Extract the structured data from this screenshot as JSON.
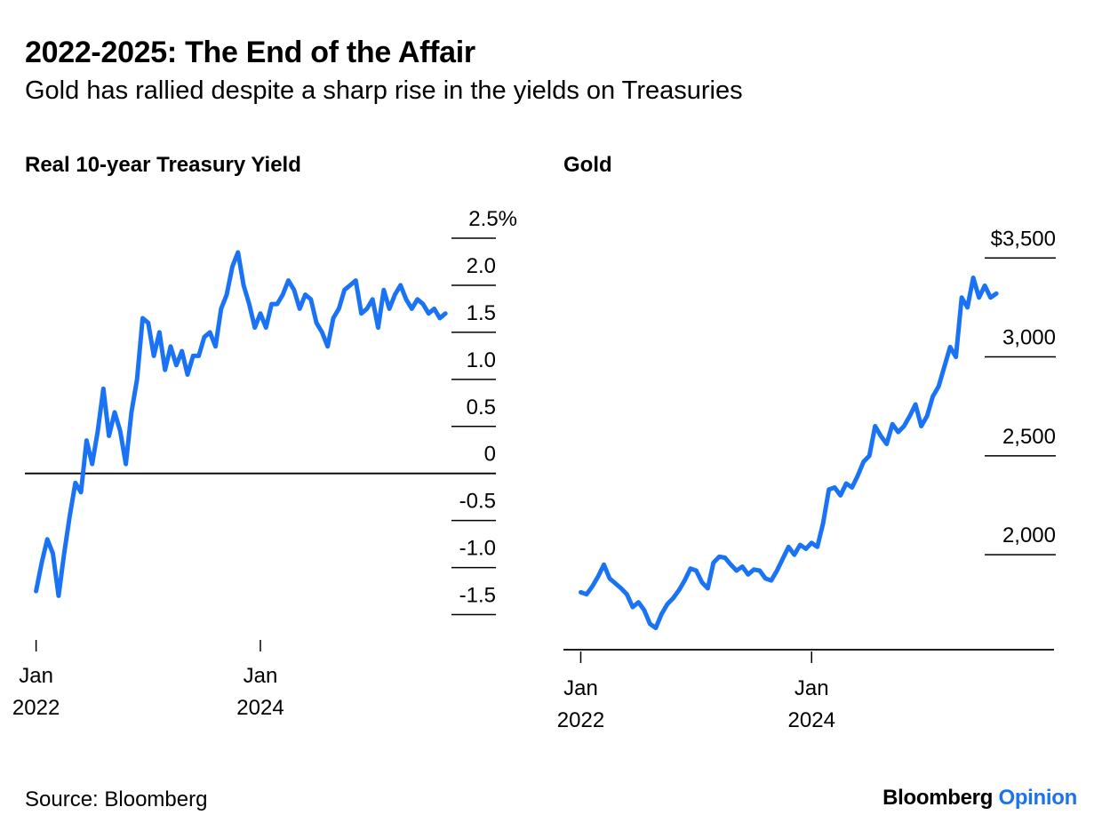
{
  "title": "2022-2025: The End of the Affair",
  "subtitle": "Gold has rallied despite a sharp rise in the yields on Treasuries",
  "source": "Source: Bloomberg",
  "brand": {
    "name": "Bloomberg",
    "suffix": "Opinion",
    "color": "#1b74ea"
  },
  "line_color": "#1a73f5",
  "chart_data": [
    {
      "type": "line",
      "title": "Real 10-year Treasury Yield",
      "ylim": [
        -1.75,
        2.5
      ],
      "xlim": [
        2021.9,
        2026.1
      ],
      "zero_line": true,
      "y_ticks": [
        {
          "value": 2.5,
          "label": "2.5%"
        },
        {
          "value": 2.0,
          "label": "2.0"
        },
        {
          "value": 1.5,
          "label": "1.5"
        },
        {
          "value": 1.0,
          "label": "1.0"
        },
        {
          "value": 0.5,
          "label": "0.5"
        },
        {
          "value": 0.0,
          "label": "0"
        },
        {
          "value": -0.5,
          "label": "-0.5"
        },
        {
          "value": -1.0,
          "label": "-1.0"
        },
        {
          "value": -1.5,
          "label": "-1.5"
        }
      ],
      "x_ticks": [
        {
          "value": 2022.0,
          "line1": "Jan",
          "line2": "2022"
        },
        {
          "value": 2024.0,
          "line1": "Jan",
          "line2": "2024"
        }
      ],
      "series": [
        {
          "x": [
            2022.0,
            2022.05,
            2022.1,
            2022.15,
            2022.2,
            2022.25,
            2022.3,
            2022.35,
            2022.4,
            2022.45,
            2022.5,
            2022.55,
            2022.6,
            2022.65,
            2022.7,
            2022.75,
            2022.8,
            2022.85,
            2022.9,
            2022.95,
            2023.0,
            2023.05,
            2023.1,
            2023.15,
            2023.2,
            2023.25,
            2023.3,
            2023.35,
            2023.4,
            2023.45,
            2023.5,
            2023.55,
            2023.6,
            2023.65,
            2023.7,
            2023.75,
            2023.8,
            2023.85,
            2023.9,
            2023.95,
            2024.0,
            2024.05,
            2024.1,
            2024.15,
            2024.2,
            2024.25,
            2024.3,
            2024.35,
            2024.4,
            2024.45,
            2024.5,
            2024.55,
            2024.6,
            2024.65,
            2024.7,
            2024.75,
            2024.8,
            2024.85,
            2024.9,
            2024.95,
            2025.0,
            2025.05,
            2025.1,
            2025.15,
            2025.2,
            2025.25,
            2025.3,
            2025.35,
            2025.4,
            2025.45,
            2025.5,
            2025.55,
            2025.6,
            2025.65
          ],
          "values": [
            -1.25,
            -0.95,
            -0.7,
            -0.85,
            -1.3,
            -0.85,
            -0.45,
            -0.1,
            -0.2,
            0.35,
            0.1,
            0.45,
            0.9,
            0.4,
            0.65,
            0.45,
            0.1,
            0.65,
            1.0,
            1.65,
            1.6,
            1.25,
            1.5,
            1.1,
            1.35,
            1.15,
            1.3,
            1.05,
            1.25,
            1.25,
            1.45,
            1.5,
            1.35,
            1.75,
            1.9,
            2.2,
            2.35,
            2.0,
            1.8,
            1.55,
            1.7,
            1.55,
            1.8,
            1.8,
            1.9,
            2.05,
            1.95,
            1.75,
            1.9,
            1.85,
            1.6,
            1.5,
            1.35,
            1.65,
            1.75,
            1.95,
            2.0,
            2.05,
            1.7,
            1.75,
            1.85,
            1.55,
            1.95,
            1.75,
            1.9,
            2.0,
            1.85,
            1.75,
            1.85,
            1.8,
            1.7,
            1.75,
            1.65,
            1.7
          ]
        }
      ]
    },
    {
      "type": "line",
      "title": "Gold",
      "ylim": [
        1520,
        3600
      ],
      "xlim": [
        2021.85,
        2026.1
      ],
      "y_ticks": [
        {
          "value": 3500,
          "label": "$3,500"
        },
        {
          "value": 3000,
          "label": "3,000"
        },
        {
          "value": 2500,
          "label": "2,500"
        },
        {
          "value": 2000,
          "label": "2,000"
        }
      ],
      "x_ticks": [
        {
          "value": 2022.0,
          "line1": "Jan",
          "line2": "2022"
        },
        {
          "value": 2024.0,
          "line1": "Jan",
          "line2": "2024"
        }
      ],
      "series": [
        {
          "x": [
            2022.0,
            2022.05,
            2022.1,
            2022.15,
            2022.2,
            2022.25,
            2022.3,
            2022.35,
            2022.4,
            2022.45,
            2022.5,
            2022.55,
            2022.6,
            2022.65,
            2022.7,
            2022.75,
            2022.8,
            2022.85,
            2022.9,
            2022.95,
            2023.0,
            2023.05,
            2023.1,
            2023.15,
            2023.2,
            2023.25,
            2023.3,
            2023.35,
            2023.4,
            2023.45,
            2023.5,
            2023.55,
            2023.6,
            2023.65,
            2023.7,
            2023.75,
            2023.8,
            2023.85,
            2023.9,
            2023.95,
            2024.0,
            2024.05,
            2024.1,
            2024.15,
            2024.2,
            2024.25,
            2024.3,
            2024.35,
            2024.4,
            2024.45,
            2024.5,
            2024.55,
            2024.6,
            2024.65,
            2024.7,
            2024.75,
            2024.8,
            2024.85,
            2024.9,
            2024.95,
            2025.0,
            2025.05,
            2025.1,
            2025.15,
            2025.2,
            2025.25,
            2025.3,
            2025.35,
            2025.4,
            2025.45,
            2025.5,
            2025.55,
            2025.6
          ],
          "values": [
            1810,
            1800,
            1840,
            1890,
            1950,
            1880,
            1855,
            1830,
            1800,
            1735,
            1760,
            1720,
            1650,
            1630,
            1700,
            1750,
            1780,
            1820,
            1870,
            1930,
            1920,
            1860,
            1830,
            1960,
            1990,
            1985,
            1950,
            1920,
            1940,
            1900,
            1925,
            1920,
            1880,
            1870,
            1920,
            1980,
            2040,
            2000,
            2050,
            2030,
            2060,
            2040,
            2160,
            2330,
            2340,
            2300,
            2360,
            2340,
            2400,
            2470,
            2500,
            2650,
            2600,
            2560,
            2660,
            2620,
            2650,
            2700,
            2760,
            2650,
            2700,
            2800,
            2850,
            2950,
            3050,
            3000,
            3300,
            3250,
            3400,
            3300,
            3360,
            3300,
            3320
          ]
        }
      ]
    }
  ]
}
